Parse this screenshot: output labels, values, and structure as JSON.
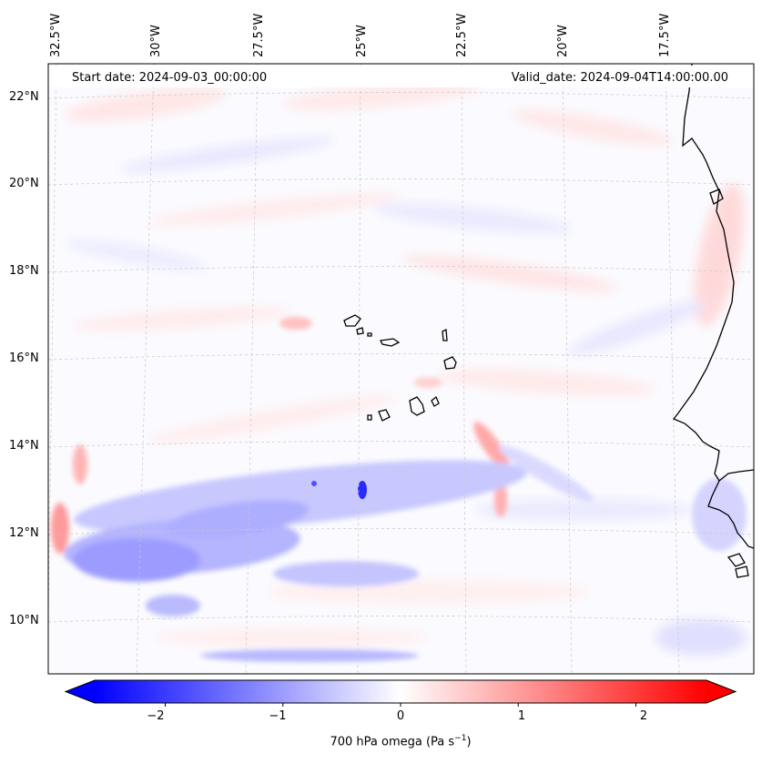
{
  "map": {
    "start_date": "Start date: 2024-09-03_00:00:00",
    "valid_date": "Valid_date: 2024-09-04T14:00:00.00",
    "lon_labels": [
      "32.5°W",
      "30°W",
      "27.5°W",
      "25°W",
      "22.5°W",
      "20°W",
      "17.5°W"
    ],
    "lat_labels": [
      "22°N",
      "20°N",
      "18°N",
      "16°N",
      "14°N",
      "12°N",
      "10°N"
    ],
    "extent": {
      "lon_min": -33.0,
      "lon_max": -15.3,
      "lat_min": 8.9,
      "lat_max": 22.7
    }
  },
  "colorbar": {
    "label_prefix": "700 hPa omega (Pa s",
    "label_exp": "−1",
    "label_suffix": ")",
    "ticks": [
      "−2",
      "−1",
      "0",
      "1",
      "2"
    ],
    "range": [
      -2.6,
      2.6
    ],
    "colors": {
      "negative": "#0000ff",
      "zero": "#ffffff",
      "positive": "#ff0000"
    }
  }
}
